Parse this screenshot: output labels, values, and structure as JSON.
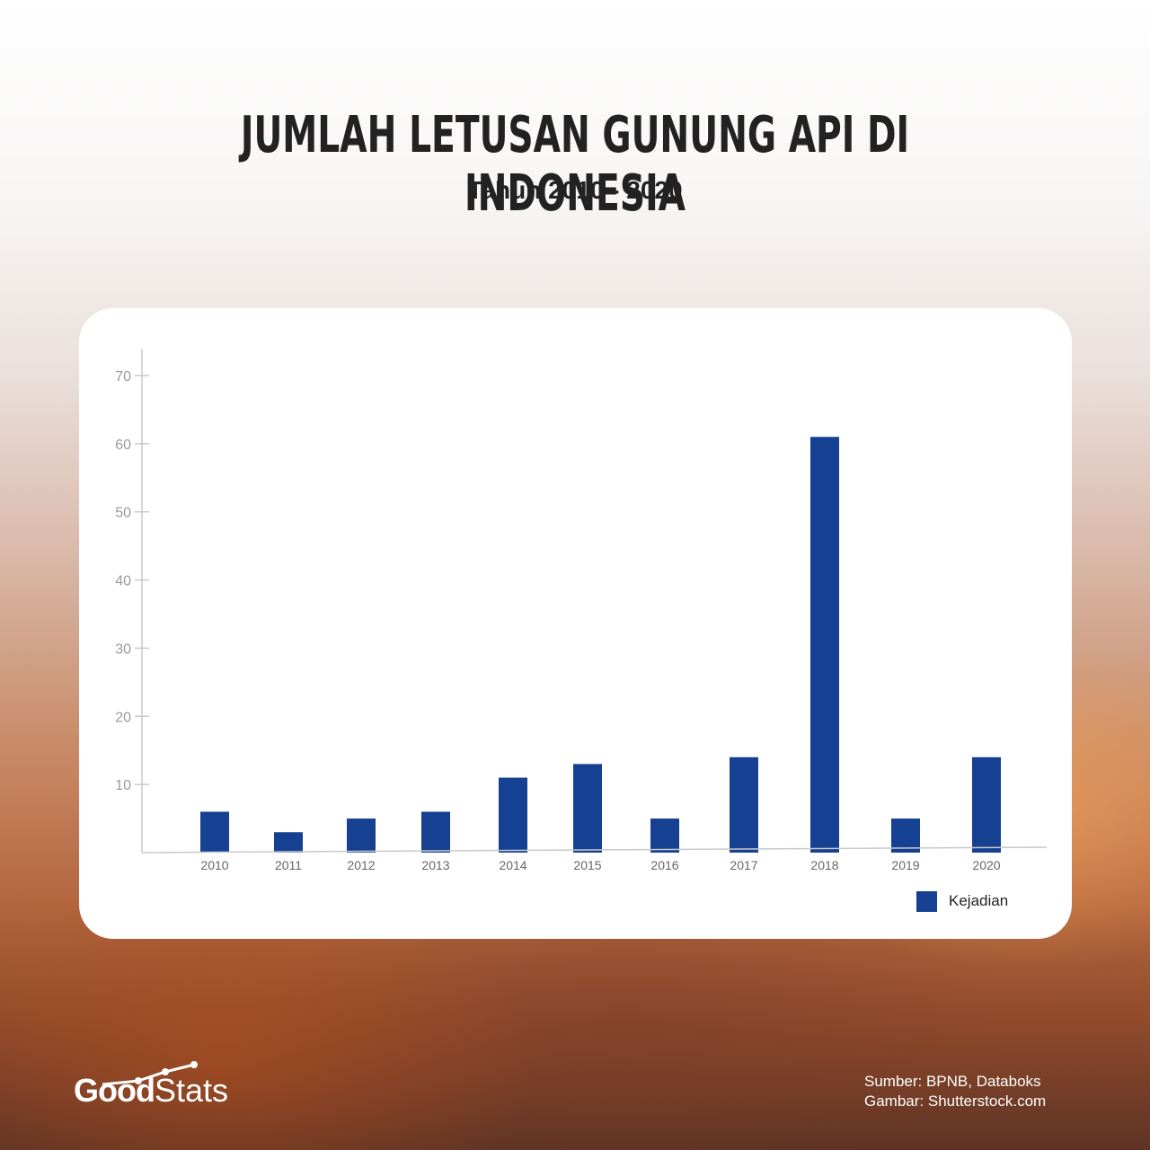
{
  "header": {
    "title": "JUMLAH LETUSAN GUNUNG API DI INDONESIA",
    "subtitle": "Tahun 2010 - 2020"
  },
  "chart_data": {
    "type": "bar",
    "categories": [
      "2010",
      "2011",
      "2012",
      "2013",
      "2014",
      "2015",
      "2016",
      "2017",
      "2018",
      "2019",
      "2020"
    ],
    "series": [
      {
        "name": "Kejadian",
        "values": [
          6,
          3,
          5,
          6,
          11,
          13,
          5,
          14,
          61,
          5,
          14
        ],
        "color": "#164193"
      }
    ],
    "yticks": [
      10,
      20,
      30,
      40,
      50,
      60,
      70
    ],
    "ylim": [
      0,
      70
    ],
    "grid": false,
    "legend": "bottom-right"
  },
  "footer": {
    "logo_bold": "Good",
    "logo_light": "Stats",
    "source_line": "Sumber: BPNB, Databoks",
    "image_line": "Gambar: Shutterstock.com"
  }
}
